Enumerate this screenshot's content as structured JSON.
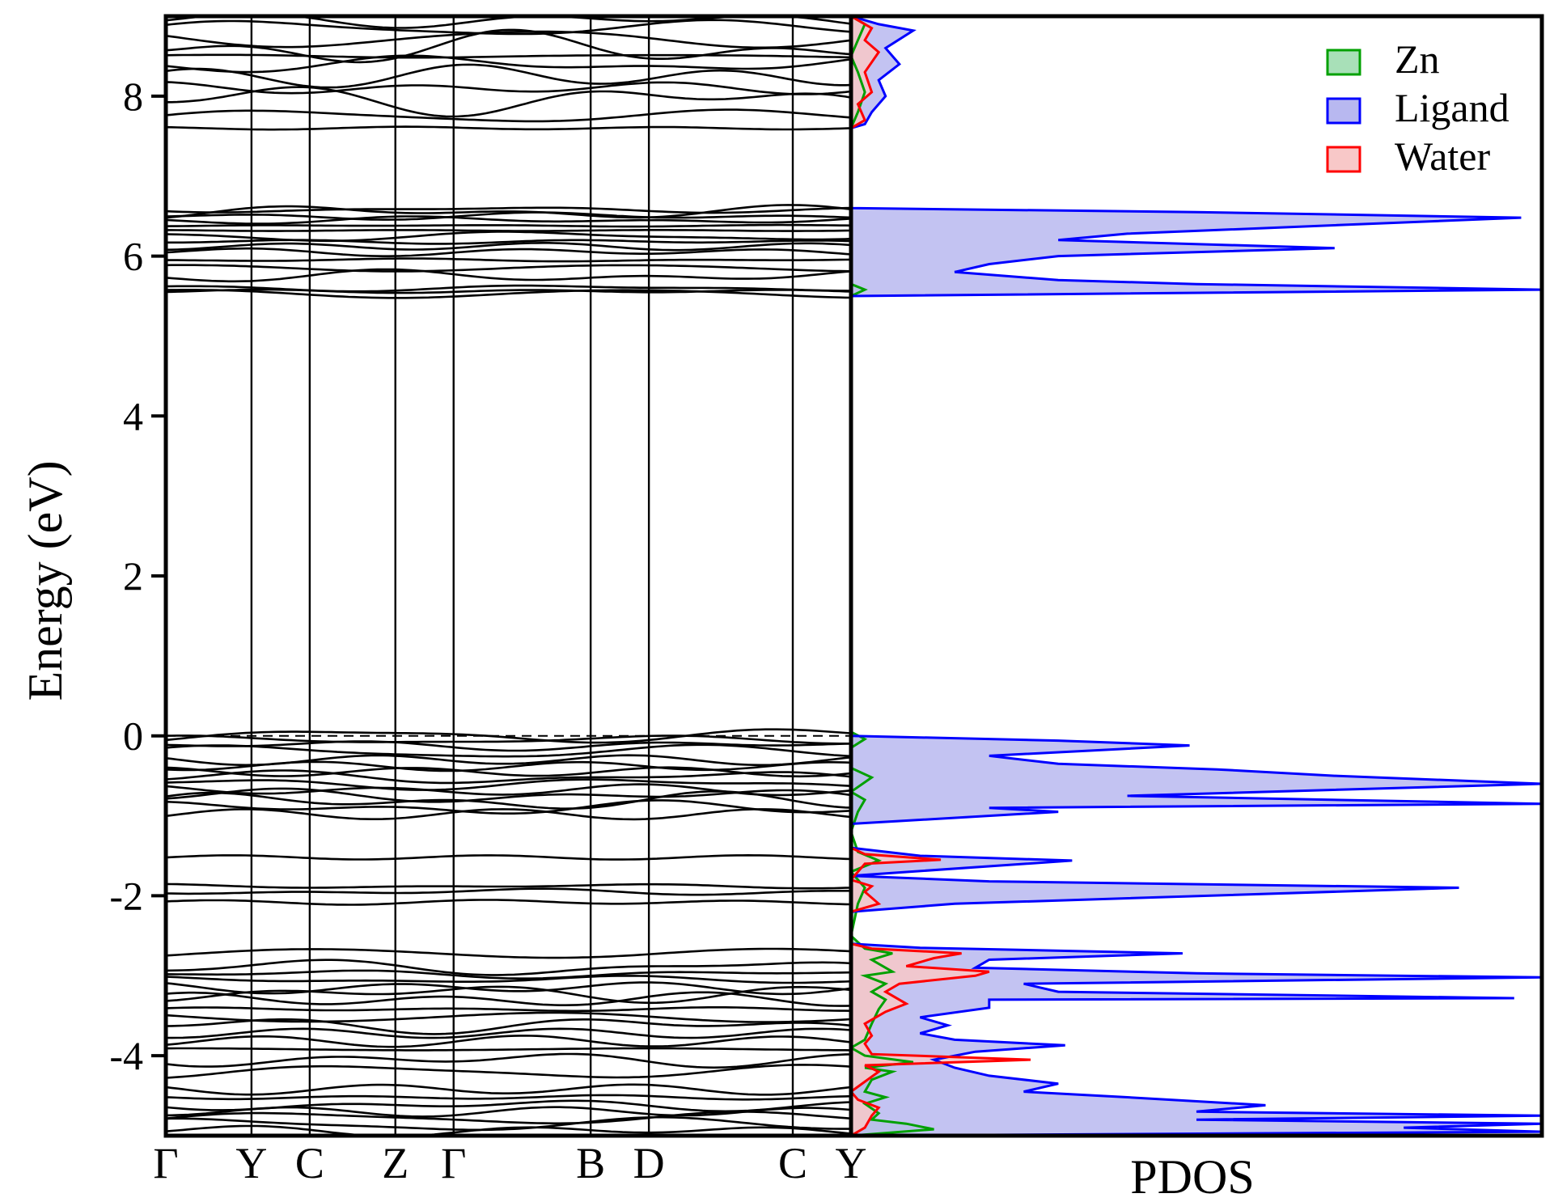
{
  "chart_data": [
    {
      "type": "line",
      "subtype": "band-structure",
      "ylabel": "Energy (eV)",
      "ylim": [
        -5.0,
        9.0
      ],
      "yticks": [
        -4,
        -2,
        0,
        2,
        4,
        6,
        8
      ],
      "ytick_labels": [
        "-4",
        "-2",
        "0",
        "2",
        "4",
        "6",
        "8"
      ],
      "kpoints": [
        "Γ",
        "Y",
        "C",
        "Z",
        "Γ",
        "B",
        "D",
        "C",
        "Y"
      ],
      "kpoint_positions": [
        0.0,
        0.125,
        0.21,
        0.335,
        0.42,
        0.62,
        0.705,
        0.915,
        1.0
      ],
      "fermi_level": 0.0,
      "bands": {
        "conduction_lower": [
          5.53,
          5.56,
          5.6,
          5.75,
          5.85,
          5.95,
          6.05,
          6.12,
          6.18,
          6.25,
          6.32,
          6.38,
          6.45,
          6.5,
          6.55,
          6.58
        ],
        "conduction_upper": [
          7.6,
          7.75,
          7.95,
          8.1,
          8.25,
          8.4,
          8.5,
          8.6,
          8.72,
          8.85,
          8.95
        ],
        "valence_top": [
          0.0,
          -0.05,
          -0.12,
          -0.2,
          -0.3,
          -0.38,
          -0.45,
          -0.52,
          -0.6,
          -0.68,
          -0.75,
          -0.82,
          -0.9,
          -0.98
        ],
        "valence_isolated": [
          -1.52,
          -1.88,
          -1.95,
          -2.08
        ],
        "valence_lower": [
          -2.72,
          -2.9,
          -2.98,
          -3.05,
          -3.15,
          -3.22,
          -3.3,
          -3.42,
          -3.52,
          -3.62,
          -3.72,
          -3.82,
          -3.92,
          -4.05,
          -4.2,
          -4.42,
          -4.52,
          -4.62,
          -4.7,
          -4.78,
          -4.86,
          -4.94
        ]
      }
    },
    {
      "type": "area",
      "subtype": "projected-density-of-states",
      "xlabel": "PDOS",
      "ylim": [
        -5.0,
        9.0
      ],
      "legend_position": "top-right",
      "series": [
        {
          "name": "Zn",
          "color": "#00a000",
          "fill": "#a8e0b8",
          "points": [
            [
              0.0,
              -5.0
            ],
            [
              0.12,
              -4.92
            ],
            [
              0.08,
              -4.85
            ],
            [
              0.03,
              -4.8
            ],
            [
              0.04,
              -4.72
            ],
            [
              0.02,
              -4.6
            ],
            [
              0.05,
              -4.52
            ],
            [
              0.02,
              -4.45
            ],
            [
              0.03,
              -4.3
            ],
            [
              0.06,
              -4.2
            ],
            [
              0.02,
              -4.15
            ],
            [
              0.09,
              -4.08
            ],
            [
              0.02,
              -4.0
            ],
            [
              0.0,
              -3.9
            ],
            [
              0.02,
              -3.8
            ],
            [
              0.03,
              -3.6
            ],
            [
              0.04,
              -3.42
            ],
            [
              0.05,
              -3.3
            ],
            [
              0.03,
              -3.2
            ],
            [
              0.05,
              -3.1
            ],
            [
              0.02,
              -3.0
            ],
            [
              0.06,
              -2.95
            ],
            [
              0.03,
              -2.8
            ],
            [
              0.06,
              -2.72
            ],
            [
              0.02,
              -2.66
            ],
            [
              0.0,
              -2.5
            ],
            [
              0.01,
              -2.1
            ],
            [
              0.02,
              -1.9
            ],
            [
              0.0,
              -1.7
            ],
            [
              0.04,
              -1.56
            ],
            [
              0.01,
              -1.45
            ],
            [
              0.0,
              -1.2
            ],
            [
              0.01,
              -0.95
            ],
            [
              0.02,
              -0.8
            ],
            [
              0.0,
              -0.7
            ],
            [
              0.03,
              -0.52
            ],
            [
              0.0,
              -0.4
            ],
            [
              0.0,
              -0.15
            ],
            [
              0.02,
              -0.04
            ],
            [
              0.0,
              0.05
            ],
            [
              0.0,
              5.5
            ],
            [
              0.02,
              5.58
            ],
            [
              0.0,
              5.65
            ],
            [
              0.0,
              7.6
            ],
            [
              0.01,
              7.8
            ],
            [
              0.02,
              8.05
            ],
            [
              0.01,
              8.3
            ],
            [
              0.0,
              8.5
            ],
            [
              0.01,
              8.7
            ],
            [
              0.02,
              8.9
            ],
            [
              0.0,
              9.0
            ]
          ]
        },
        {
          "name": "Ligand",
          "color": "#0000ff",
          "fill": "#b8b8f0",
          "points": [
            [
              0.0,
              -5.0
            ],
            [
              1.0,
              -4.95
            ],
            [
              0.8,
              -4.9
            ],
            [
              1.0,
              -4.85
            ],
            [
              0.5,
              -4.8
            ],
            [
              1.0,
              -4.75
            ],
            [
              0.5,
              -4.7
            ],
            [
              0.6,
              -4.62
            ],
            [
              0.4,
              -4.52
            ],
            [
              0.25,
              -4.45
            ],
            [
              0.3,
              -4.35
            ],
            [
              0.2,
              -4.25
            ],
            [
              0.15,
              -4.15
            ],
            [
              0.12,
              -4.05
            ],
            [
              0.18,
              -3.95
            ],
            [
              0.31,
              -3.87
            ],
            [
              0.15,
              -3.8
            ],
            [
              0.1,
              -3.72
            ],
            [
              0.14,
              -3.62
            ],
            [
              0.1,
              -3.52
            ],
            [
              0.2,
              -3.4
            ],
            [
              0.2,
              -3.3
            ],
            [
              0.96,
              -3.28
            ],
            [
              0.3,
              -3.2
            ],
            [
              0.25,
              -3.1
            ],
            [
              1.0,
              -3.02
            ],
            [
              0.5,
              -2.97
            ],
            [
              0.18,
              -2.9
            ],
            [
              0.2,
              -2.8
            ],
            [
              0.48,
              -2.72
            ],
            [
              0.1,
              -2.65
            ],
            [
              0.0,
              -2.6
            ],
            [
              0.0,
              -2.2
            ],
            [
              0.15,
              -2.1
            ],
            [
              0.88,
              -1.9
            ],
            [
              0.2,
              -1.82
            ],
            [
              0.0,
              -1.75
            ],
            [
              0.32,
              -1.56
            ],
            [
              0.1,
              -1.5
            ],
            [
              0.0,
              -1.4
            ],
            [
              0.0,
              -1.1
            ],
            [
              0.3,
              -0.95
            ],
            [
              0.2,
              -0.9
            ],
            [
              1.0,
              -0.85
            ],
            [
              0.4,
              -0.75
            ],
            [
              1.0,
              -0.6
            ],
            [
              0.7,
              -0.5
            ],
            [
              0.53,
              -0.42
            ],
            [
              0.3,
              -0.35
            ],
            [
              0.2,
              -0.25
            ],
            [
              0.49,
              -0.12
            ],
            [
              0.3,
              -0.06
            ],
            [
              0.0,
              0.0
            ],
            [
              0.0,
              5.5
            ],
            [
              1.0,
              5.58
            ],
            [
              0.5,
              5.65
            ],
            [
              0.3,
              5.7
            ],
            [
              0.15,
              5.8
            ],
            [
              0.2,
              5.9
            ],
            [
              0.3,
              6.0
            ],
            [
              0.7,
              6.1
            ],
            [
              0.3,
              6.2
            ],
            [
              0.4,
              6.28
            ],
            [
              0.97,
              6.48
            ],
            [
              0.5,
              6.55
            ],
            [
              0.0,
              6.6
            ],
            [
              0.0,
              7.6
            ],
            [
              0.02,
              7.65
            ],
            [
              0.03,
              7.8
            ],
            [
              0.05,
              8.0
            ],
            [
              0.04,
              8.2
            ],
            [
              0.07,
              8.4
            ],
            [
              0.05,
              8.6
            ],
            [
              0.09,
              8.82
            ],
            [
              0.04,
              8.9
            ],
            [
              0.0,
              9.0
            ]
          ]
        },
        {
          "name": "Water",
          "color": "#ff0000",
          "fill": "#f8c8c8",
          "points": [
            [
              0.0,
              -5.0
            ],
            [
              0.02,
              -4.9
            ],
            [
              0.03,
              -4.75
            ],
            [
              0.04,
              -4.65
            ],
            [
              0.01,
              -4.55
            ],
            [
              0.0,
              -4.45
            ],
            [
              0.04,
              -4.2
            ],
            [
              0.02,
              -4.12
            ],
            [
              0.26,
              -4.05
            ],
            [
              0.03,
              -3.98
            ],
            [
              0.02,
              -3.85
            ],
            [
              0.03,
              -3.75
            ],
            [
              0.02,
              -3.6
            ],
            [
              0.05,
              -3.45
            ],
            [
              0.08,
              -3.35
            ],
            [
              0.05,
              -3.2
            ],
            [
              0.07,
              -3.1
            ],
            [
              0.18,
              -3.0
            ],
            [
              0.2,
              -2.95
            ],
            [
              0.08,
              -2.88
            ],
            [
              0.12,
              -2.78
            ],
            [
              0.16,
              -2.72
            ],
            [
              0.03,
              -2.66
            ],
            [
              0.0,
              -2.6
            ],
            [
              0.0,
              -2.2
            ],
            [
              0.04,
              -2.1
            ],
            [
              0.02,
              -1.95
            ],
            [
              0.03,
              -1.88
            ],
            [
              0.0,
              -1.8
            ],
            [
              0.02,
              -1.6
            ],
            [
              0.13,
              -1.55
            ],
            [
              0.02,
              -1.48
            ],
            [
              0.0,
              -1.4
            ],
            [
              0.0,
              5.5
            ],
            [
              0.0,
              7.6
            ],
            [
              0.02,
              7.7
            ],
            [
              0.01,
              7.9
            ],
            [
              0.03,
              8.05
            ],
            [
              0.02,
              8.3
            ],
            [
              0.04,
              8.55
            ],
            [
              0.02,
              8.7
            ],
            [
              0.03,
              8.85
            ],
            [
              0.01,
              8.95
            ],
            [
              0.0,
              9.0
            ]
          ]
        }
      ]
    }
  ]
}
